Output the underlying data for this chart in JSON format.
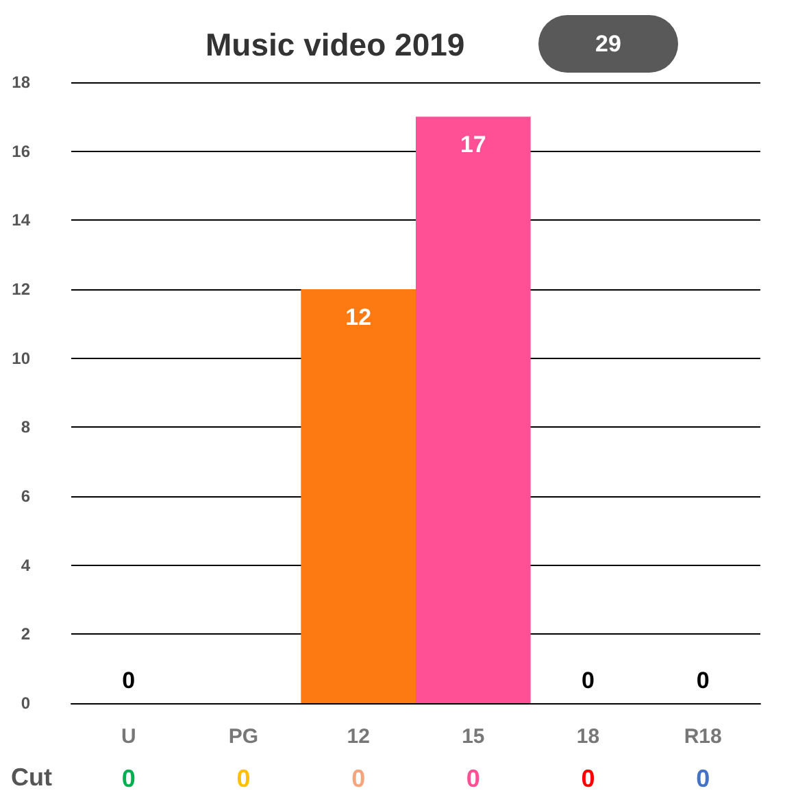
{
  "chart_data": {
    "type": "bar",
    "title": "Music video 2019",
    "categories": [
      "U",
      "PG",
      "12",
      "15",
      "18",
      "R18"
    ],
    "series": [
      {
        "values": [
          0,
          0,
          12,
          17,
          0,
          0
        ],
        "colors": [
          null,
          null,
          "#fd7a13",
          "#ff4f95",
          null,
          null
        ],
        "value_labels": [
          "0",
          null,
          "12",
          "17",
          "0",
          "0"
        ]
      },
      {
        "type": "bar",
        "name": "Cut",
        "values": [
          0,
          0,
          0,
          0,
          0,
          0
        ],
        "colors": [
          "#00b050",
          "#ffc000",
          "#f4a57c",
          "#ff4f95",
          "#ff0000",
          "#4472c4"
        ],
        "value_labels": [
          "0",
          "0",
          "0",
          "0",
          "0",
          "0"
        ]
      }
    ],
    "annotations": [
      "29"
    ],
    "ylim": [
      0,
      18
    ],
    "yticks": [
      0,
      2,
      4,
      6,
      8,
      10,
      12,
      14,
      16,
      18
    ],
    "grid": "y",
    "legend": false
  }
}
